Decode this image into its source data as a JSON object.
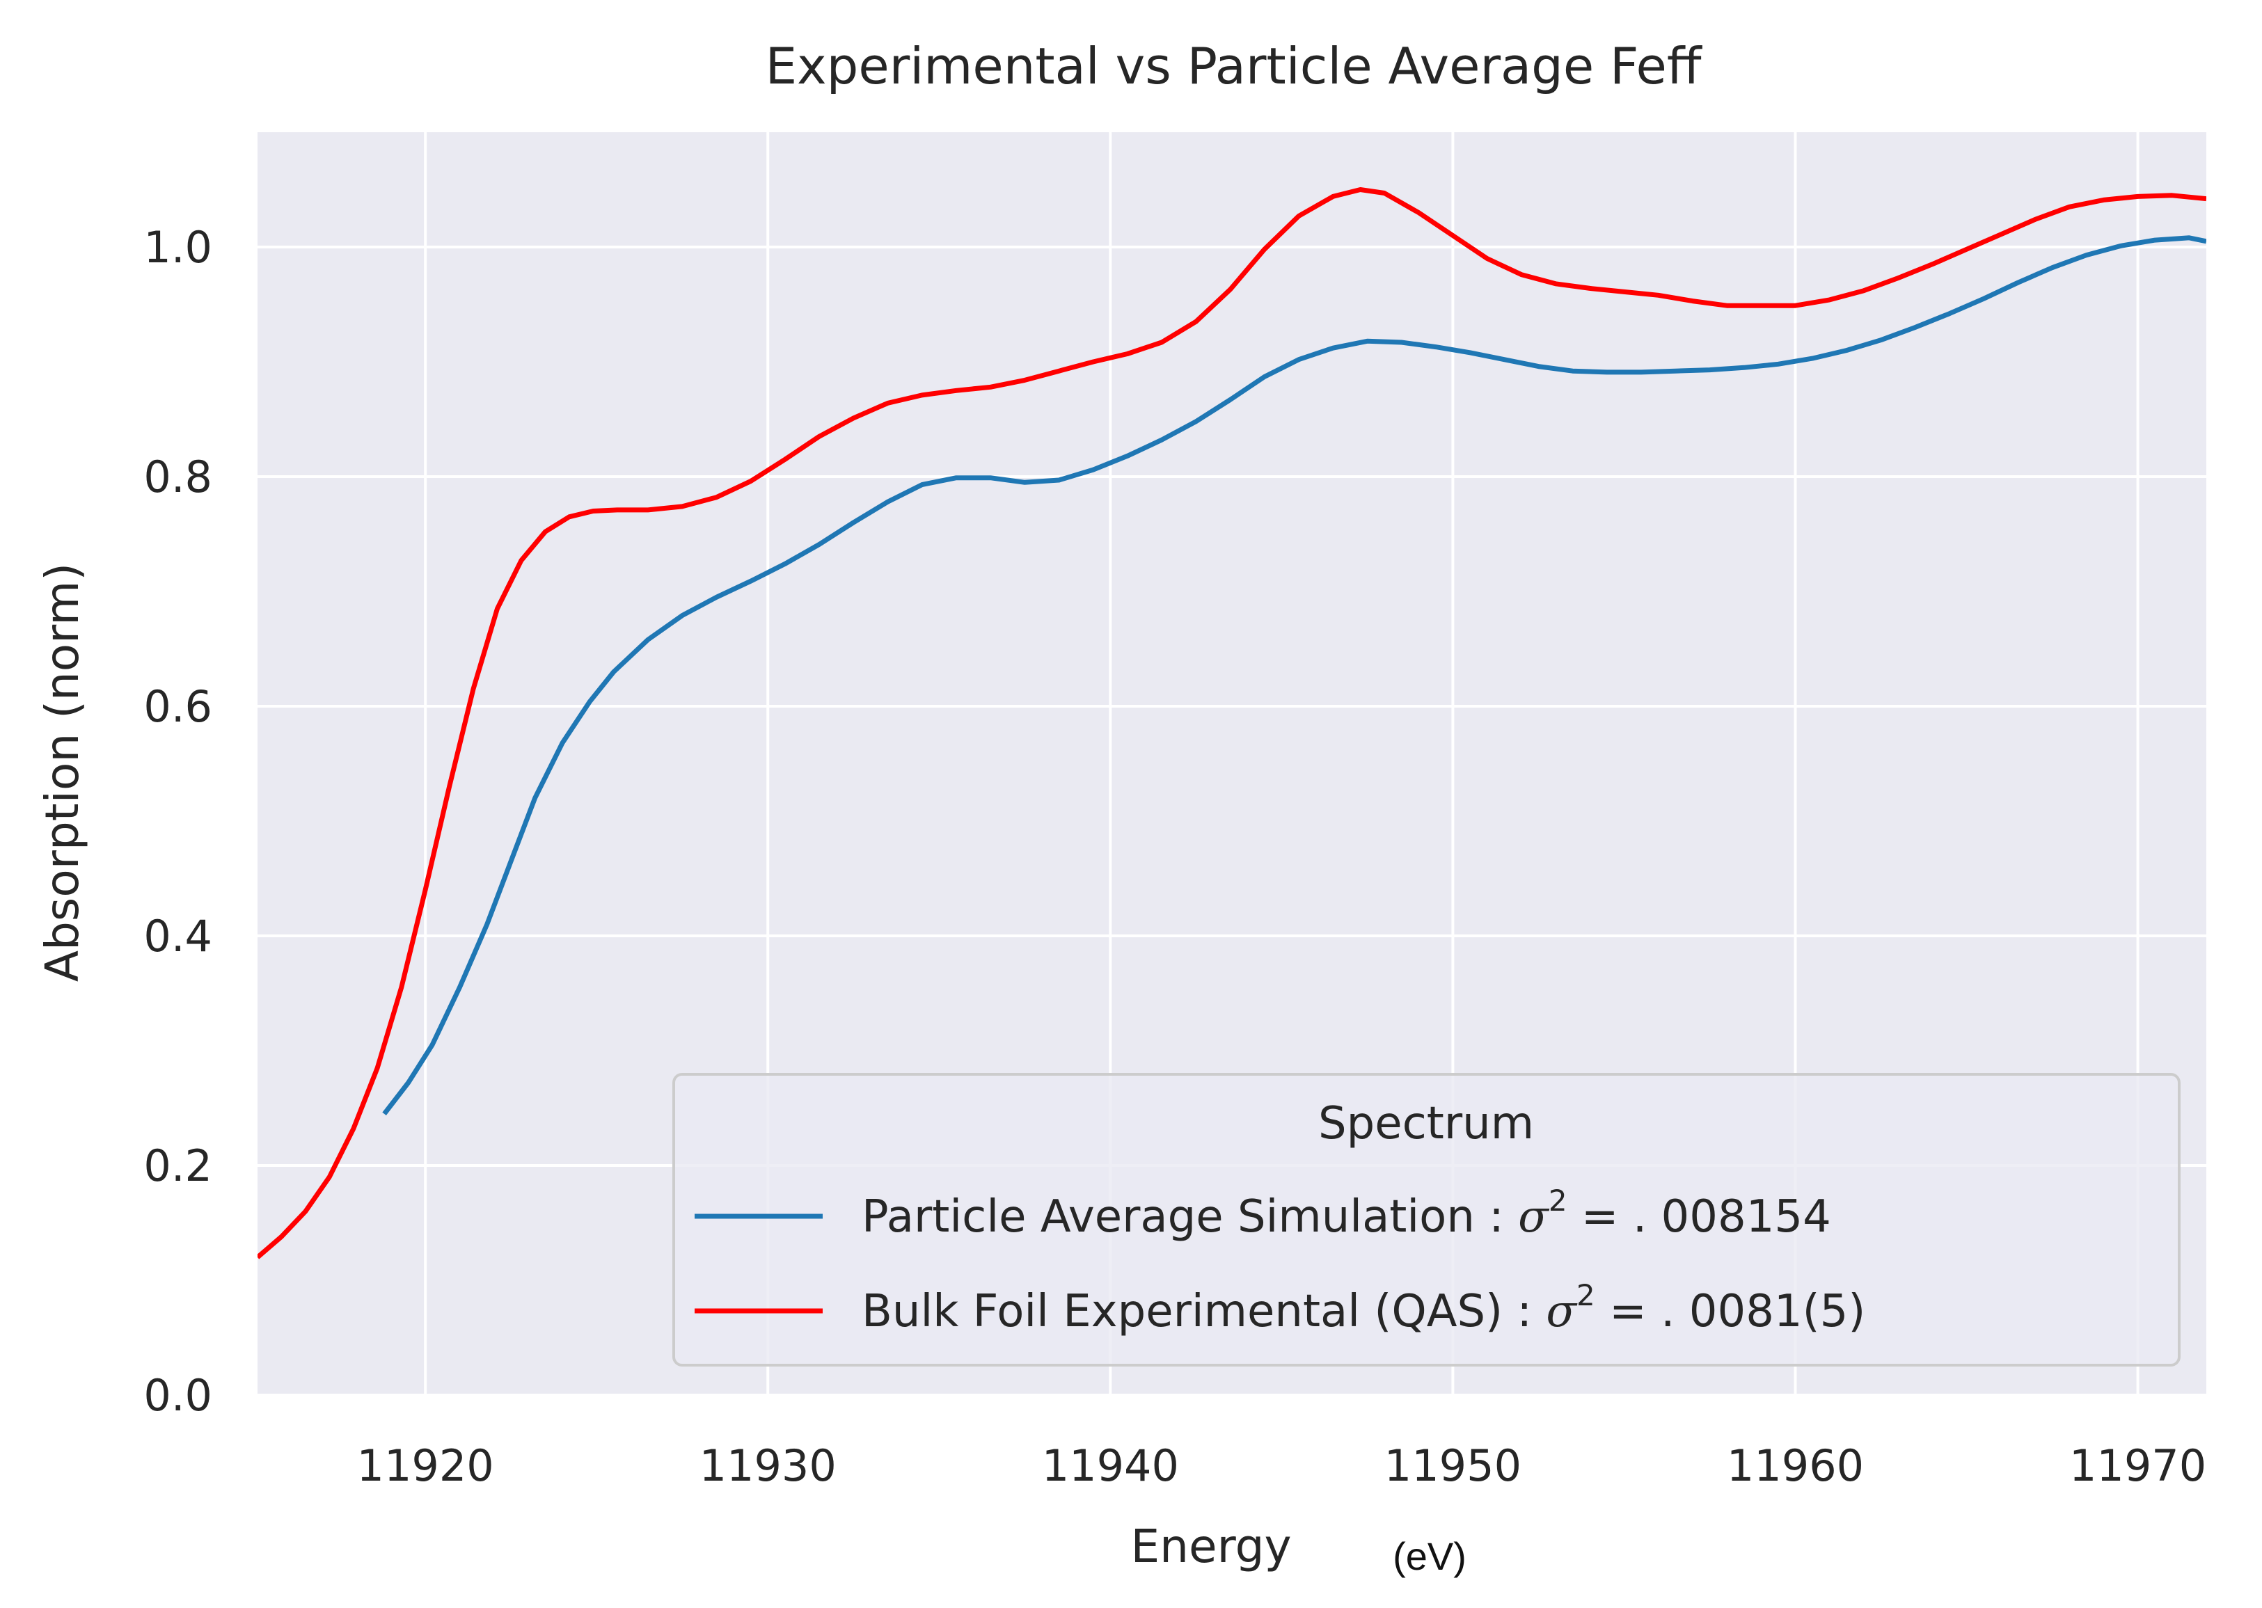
{
  "chart_data": {
    "type": "line",
    "title": "Experimental vs Particle Average Feff",
    "xlabel": "Energy",
    "xlabel_unit": "(eV)",
    "ylabel": "Absorption (norm)",
    "xlim": [
      11915.1,
      11972.0
    ],
    "ylim": [
      0.0,
      1.1
    ],
    "x_ticks": [
      11920,
      11930,
      11940,
      11950,
      11960,
      11970
    ],
    "y_ticks": [
      0.0,
      0.2,
      0.4,
      0.6,
      0.8,
      1.0
    ],
    "y_tick_labels": [
      "0.0",
      "0.2",
      "0.4",
      "0.6",
      "0.8",
      "1.0"
    ],
    "grid": true,
    "background": "#eaeaf2",
    "legend": {
      "title": "Spectrum",
      "placement": "lower-right"
    },
    "series": [
      {
        "name": "Particle Average Simulation : σ² = . 008154",
        "name_prefix": "Particle Average Simulation : ",
        "name_suffix": " = . 008154",
        "color": "#1f77b4",
        "x": [
          11918.8,
          11919.5,
          11920.2,
          11921.0,
          11921.8,
          11922.5,
          11923.2,
          11924.0,
          11924.8,
          11925.5,
          11926.5,
          11927.5,
          11928.5,
          11929.5,
          11930.5,
          11931.5,
          11932.5,
          11933.5,
          11934.5,
          11935.5,
          11936.5,
          11937.5,
          11938.5,
          11939.5,
          11940.5,
          11941.5,
          11942.5,
          11943.5,
          11944.5,
          11945.5,
          11946.5,
          11947.5,
          11948.5,
          11949.5,
          11950.5,
          11951.5,
          11952.5,
          11953.5,
          11954.5,
          11955.5,
          11956.5,
          11957.5,
          11958.5,
          11959.5,
          11960.5,
          11961.5,
          11962.5,
          11963.5,
          11964.5,
          11965.5,
          11966.5,
          11967.5,
          11968.5,
          11969.5,
          11970.5,
          11971.5,
          11972.0
        ],
        "y": [
          0.245,
          0.272,
          0.305,
          0.355,
          0.41,
          0.465,
          0.52,
          0.568,
          0.604,
          0.63,
          0.658,
          0.679,
          0.695,
          0.709,
          0.724,
          0.741,
          0.76,
          0.778,
          0.793,
          0.799,
          0.799,
          0.795,
          0.797,
          0.806,
          0.818,
          0.832,
          0.848,
          0.867,
          0.887,
          0.902,
          0.912,
          0.918,
          0.917,
          0.913,
          0.908,
          0.902,
          0.896,
          0.892,
          0.891,
          0.891,
          0.892,
          0.893,
          0.895,
          0.898,
          0.903,
          0.91,
          0.919,
          0.93,
          0.942,
          0.955,
          0.969,
          0.982,
          0.993,
          1.001,
          1.006,
          1.008,
          1.005
        ]
      },
      {
        "name": "Bulk Foil Experimental (QAS) : σ² = . 0081(5)",
        "name_prefix": "Bulk Foil Experimental (QAS) : ",
        "name_suffix": " = . 0081(5)",
        "color": "#ff0000",
        "x": [
          11915.1,
          11915.8,
          11916.5,
          11917.2,
          11917.9,
          11918.6,
          11919.3,
          11920.0,
          11920.7,
          11921.4,
          11922.1,
          11922.8,
          11923.5,
          11924.2,
          11924.9,
          11925.6,
          11926.5,
          11927.5,
          11928.5,
          11929.5,
          11930.5,
          11931.5,
          11932.5,
          11933.5,
          11934.5,
          11935.5,
          11936.5,
          11937.5,
          11938.5,
          11939.5,
          11940.5,
          11941.5,
          11942.5,
          11943.5,
          11944.5,
          11945.5,
          11946.5,
          11947.3,
          11948.0,
          11949.0,
          11950.0,
          11951.0,
          11952.0,
          11953.0,
          11954.0,
          11955.0,
          11956.0,
          11957.0,
          11958.0,
          11959.0,
          11960.0,
          11961.0,
          11962.0,
          11963.0,
          11964.0,
          11965.0,
          11966.0,
          11967.0,
          11968.0,
          11969.0,
          11970.0,
          11971.0,
          11972.0
        ],
        "y": [
          0.12,
          0.138,
          0.16,
          0.19,
          0.232,
          0.285,
          0.355,
          0.44,
          0.53,
          0.615,
          0.685,
          0.727,
          0.752,
          0.765,
          0.77,
          0.771,
          0.771,
          0.774,
          0.782,
          0.796,
          0.815,
          0.835,
          0.851,
          0.864,
          0.871,
          0.875,
          0.878,
          0.884,
          0.892,
          0.9,
          0.907,
          0.917,
          0.935,
          0.963,
          0.998,
          1.027,
          1.044,
          1.05,
          1.047,
          1.03,
          1.01,
          0.99,
          0.976,
          0.968,
          0.964,
          0.961,
          0.958,
          0.953,
          0.949,
          0.949,
          0.949,
          0.954,
          0.962,
          0.973,
          0.985,
          0.998,
          1.011,
          1.024,
          1.035,
          1.041,
          1.044,
          1.045,
          1.042
        ]
      }
    ]
  }
}
